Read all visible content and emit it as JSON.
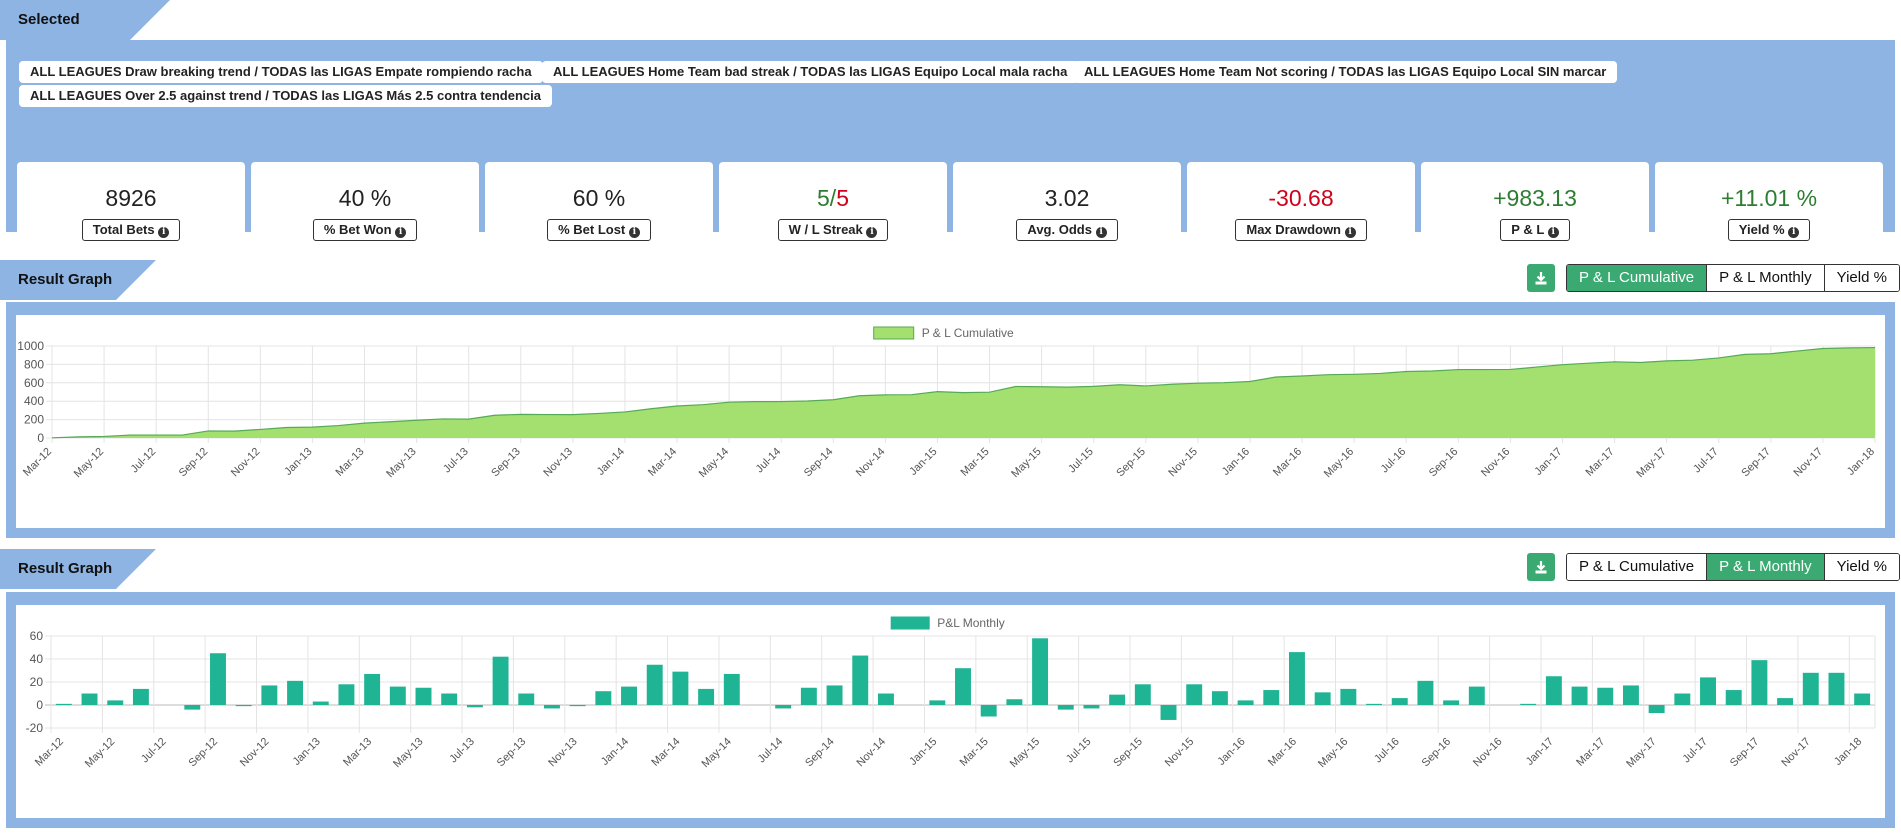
{
  "strategies": {
    "title": "Selected Strategies:",
    "items": [
      "ALL LEAGUES Draw breaking trend / TODAS las LIGAS Empate rompiendo racha",
      "ALL LEAGUES Home Team bad streak / TODAS las LIGAS Equipo Local mala racha",
      "ALL LEAGUES Home Team Not scoring / TODAS las LIGAS Equipo Local SIN marcar",
      "ALL LEAGUES Over 2.5 against trend / TODAS las LIGAS Más 2.5 contra tendencia"
    ]
  },
  "stats": [
    {
      "value": "8926",
      "label": "Total Bets"
    },
    {
      "value": "40 %",
      "label": "% Bet Won"
    },
    {
      "value": "60 %",
      "label": "% Bet Lost"
    },
    {
      "value_win": "5",
      "value_sep": "/",
      "value_loss": "5",
      "label": "W / L Streak"
    },
    {
      "value": "3.02",
      "label": "Avg. Odds"
    },
    {
      "value": "-30.68",
      "label": "Max Drawdown"
    },
    {
      "value": "+983.13",
      "label": "P & L"
    },
    {
      "value": "+11.01 %",
      "label": "Yield %"
    }
  ],
  "colors": {
    "panel": "#8db4e3",
    "green_button": "#3aaa72",
    "area_fill": "#a3e070",
    "area_line": "#55aa55",
    "bar": "#1fb494",
    "positive": "#2e7d32",
    "negative": "#d0021b"
  },
  "graph1": {
    "title": "Result Graph",
    "download_icon": "download-icon",
    "buttons": [
      "P & L Cumulative",
      "P & L Monthly",
      "Yield %"
    ],
    "active": 0
  },
  "graph2": {
    "title": "Result Graph",
    "download_icon": "download-icon",
    "buttons": [
      "P & L Cumulative",
      "P & L Monthly",
      "Yield %"
    ],
    "active": 1
  },
  "chart_data": [
    {
      "type": "area",
      "legend": "P & L Cumulative",
      "legend_position": "top",
      "grid": true,
      "ylim": [
        0,
        1000
      ],
      "yticks": [
        0,
        200,
        400,
        600,
        800,
        1000
      ],
      "x_tick_labels": [
        "Mar-12",
        "May-12",
        "Jul-12",
        "Sep-12",
        "Nov-12",
        "Jan-13",
        "Mar-13",
        "May-13",
        "Jul-13",
        "Sep-13",
        "Nov-13",
        "Jan-14",
        "Mar-14",
        "May-14",
        "Jul-14",
        "Sep-14",
        "Nov-14",
        "Jan-15",
        "Mar-15",
        "May-15",
        "Jul-15",
        "Sep-15",
        "Nov-15",
        "Jan-16",
        "Mar-16",
        "May-16",
        "Jul-16",
        "Sep-16",
        "Nov-16",
        "Jan-17",
        "Mar-17",
        "May-17",
        "Jul-17",
        "Sep-17",
        "Nov-17",
        "Jan-18"
      ],
      "x": [
        "Mar-12",
        "Apr-12",
        "May-12",
        "Jun-12",
        "Jul-12",
        "Aug-12",
        "Sep-12",
        "Oct-12",
        "Nov-12",
        "Dec-12",
        "Jan-13",
        "Feb-13",
        "Mar-13",
        "Apr-13",
        "May-13",
        "Jun-13",
        "Jul-13",
        "Aug-13",
        "Sep-13",
        "Oct-13",
        "Nov-13",
        "Dec-13",
        "Jan-14",
        "Feb-14",
        "Mar-14",
        "Apr-14",
        "May-14",
        "Jun-14",
        "Jul-14",
        "Aug-14",
        "Sep-14",
        "Oct-14",
        "Nov-14",
        "Dec-14",
        "Jan-15",
        "Feb-15",
        "Mar-15",
        "Apr-15",
        "May-15",
        "Jun-15",
        "Jul-15",
        "Aug-15",
        "Sep-15",
        "Oct-15",
        "Nov-15",
        "Dec-15",
        "Jan-16",
        "Feb-16",
        "Mar-16",
        "Apr-16",
        "May-16",
        "Jun-16",
        "Jul-16",
        "Aug-16",
        "Sep-16",
        "Oct-16",
        "Nov-16",
        "Dec-16",
        "Jan-17",
        "Feb-17",
        "Mar-17",
        "Apr-17",
        "May-17",
        "Jun-17",
        "Jul-17",
        "Aug-17",
        "Sep-17",
        "Oct-17",
        "Nov-17",
        "Dec-17",
        "Jan-18"
      ],
      "values": [
        2,
        12,
        17,
        32,
        32,
        32,
        77,
        75,
        93,
        114,
        118,
        135,
        162,
        177,
        193,
        207,
        205,
        247,
        257,
        255,
        254,
        267,
        283,
        318,
        348,
        362,
        389,
        395,
        396,
        402,
        416,
        459,
        469,
        471,
        504,
        493,
        498,
        560,
        557,
        553,
        561,
        579,
        566,
        584,
        596,
        601,
        614,
        663,
        674,
        688,
        692,
        702,
        723,
        728,
        744,
        744,
        745,
        771,
        797,
        813,
        828,
        821,
        838,
        846,
        870,
        909,
        916,
        945,
        973,
        980,
        983
      ]
    },
    {
      "type": "bar",
      "legend": "P&L Monthly",
      "legend_position": "top",
      "grid": true,
      "ylim": [
        -20,
        60
      ],
      "yticks": [
        -20,
        0,
        20,
        40,
        60
      ],
      "x_tick_labels": [
        "Mar-12",
        "May-12",
        "Jul-12",
        "Sep-12",
        "Nov-12",
        "Jan-13",
        "Mar-13",
        "May-13",
        "Jul-13",
        "Sep-13",
        "Nov-13",
        "Jan-14",
        "Mar-14",
        "May-14",
        "Jul-14",
        "Sep-14",
        "Nov-14",
        "Jan-15",
        "Mar-15",
        "May-15",
        "Jul-15",
        "Sep-15",
        "Nov-15",
        "Jan-16",
        "Mar-16",
        "May-16",
        "Jul-16",
        "Sep-16",
        "Nov-16",
        "Jan-17",
        "Mar-17",
        "May-17",
        "Jul-17",
        "Sep-17",
        "Nov-17",
        "Jan-18"
      ],
      "x": [
        "Mar-12",
        "Apr-12",
        "May-12",
        "Jun-12",
        "Jul-12",
        "Aug-12",
        "Sep-12",
        "Oct-12",
        "Nov-12",
        "Dec-12",
        "Jan-13",
        "Feb-13",
        "Mar-13",
        "Apr-13",
        "May-13",
        "Jun-13",
        "Jul-13",
        "Aug-13",
        "Sep-13",
        "Oct-13",
        "Nov-13",
        "Dec-13",
        "Jan-14",
        "Feb-14",
        "Mar-14",
        "Apr-14",
        "May-14",
        "Jun-14",
        "Jul-14",
        "Aug-14",
        "Sep-14",
        "Oct-14",
        "Nov-14",
        "Dec-14",
        "Jan-15",
        "Feb-15",
        "Mar-15",
        "Apr-15",
        "May-15",
        "Jun-15",
        "Jul-15",
        "Aug-15",
        "Sep-15",
        "Oct-15",
        "Nov-15",
        "Dec-15",
        "Jan-16",
        "Feb-16",
        "Mar-16",
        "Apr-16",
        "May-16",
        "Jun-16",
        "Jul-16",
        "Aug-16",
        "Sep-16",
        "Oct-16",
        "Nov-16",
        "Dec-16",
        "Jan-17",
        "Feb-17",
        "Mar-17",
        "Apr-17",
        "May-17",
        "Jun-17",
        "Jul-17",
        "Aug-17",
        "Sep-17",
        "Oct-17",
        "Nov-17",
        "Dec-17",
        "Jan-18"
      ],
      "values": [
        1,
        10,
        4,
        14,
        0,
        -4,
        45,
        -1,
        17,
        21,
        3,
        18,
        27,
        16,
        15,
        10,
        -2,
        42,
        10,
        -3,
        -1,
        12,
        16,
        35,
        29,
        14,
        27,
        0,
        -3,
        15,
        17,
        43,
        10,
        0,
        4,
        32,
        -10,
        5,
        58,
        -4,
        -3,
        9,
        18,
        -13,
        18,
        12,
        4,
        13,
        46,
        11,
        14,
        1,
        6,
        21,
        4,
        16,
        0,
        1,
        25,
        16,
        15,
        17,
        -7,
        10,
        24,
        13,
        39,
        6,
        28,
        28,
        10
      ]
    }
  ]
}
